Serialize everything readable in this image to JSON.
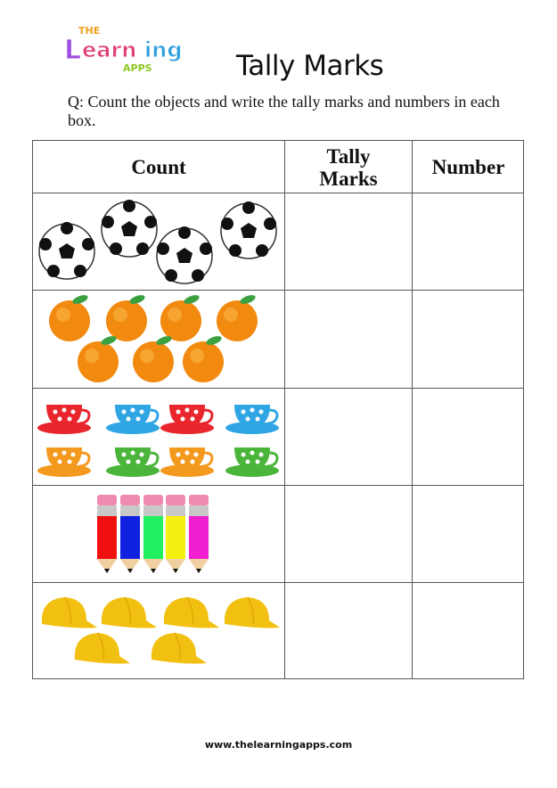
{
  "logo": {
    "text_top": "THE",
    "text_main": "Learning",
    "text_bottom": "APPS"
  },
  "title": "Tally Marks",
  "question": "Q: Count the objects and write the tally marks and numbers in each box.",
  "table": {
    "headers": [
      "Count",
      "Tally Marks",
      "Number"
    ],
    "rows": [
      {
        "object": "football",
        "count": 4,
        "tally": "",
        "number": ""
      },
      {
        "object": "orange",
        "count": 7,
        "tally": "",
        "number": ""
      },
      {
        "object": "teacup",
        "count": 8,
        "colors": [
          "#e8262c",
          "#2fa6e3",
          "#e8262c",
          "#2fa6e3",
          "#f39a1e",
          "#4bb43a",
          "#f39a1e",
          "#4bb43a"
        ],
        "tally": "",
        "number": ""
      },
      {
        "object": "pencil",
        "count": 5,
        "colors": [
          "#f01010",
          "#1022e0",
          "#22f060",
          "#f6f010",
          "#f020d0"
        ],
        "tally": "",
        "number": ""
      },
      {
        "object": "cap",
        "count": 6,
        "tally": "",
        "number": ""
      }
    ]
  },
  "footer": "www.thelearningapps.com"
}
